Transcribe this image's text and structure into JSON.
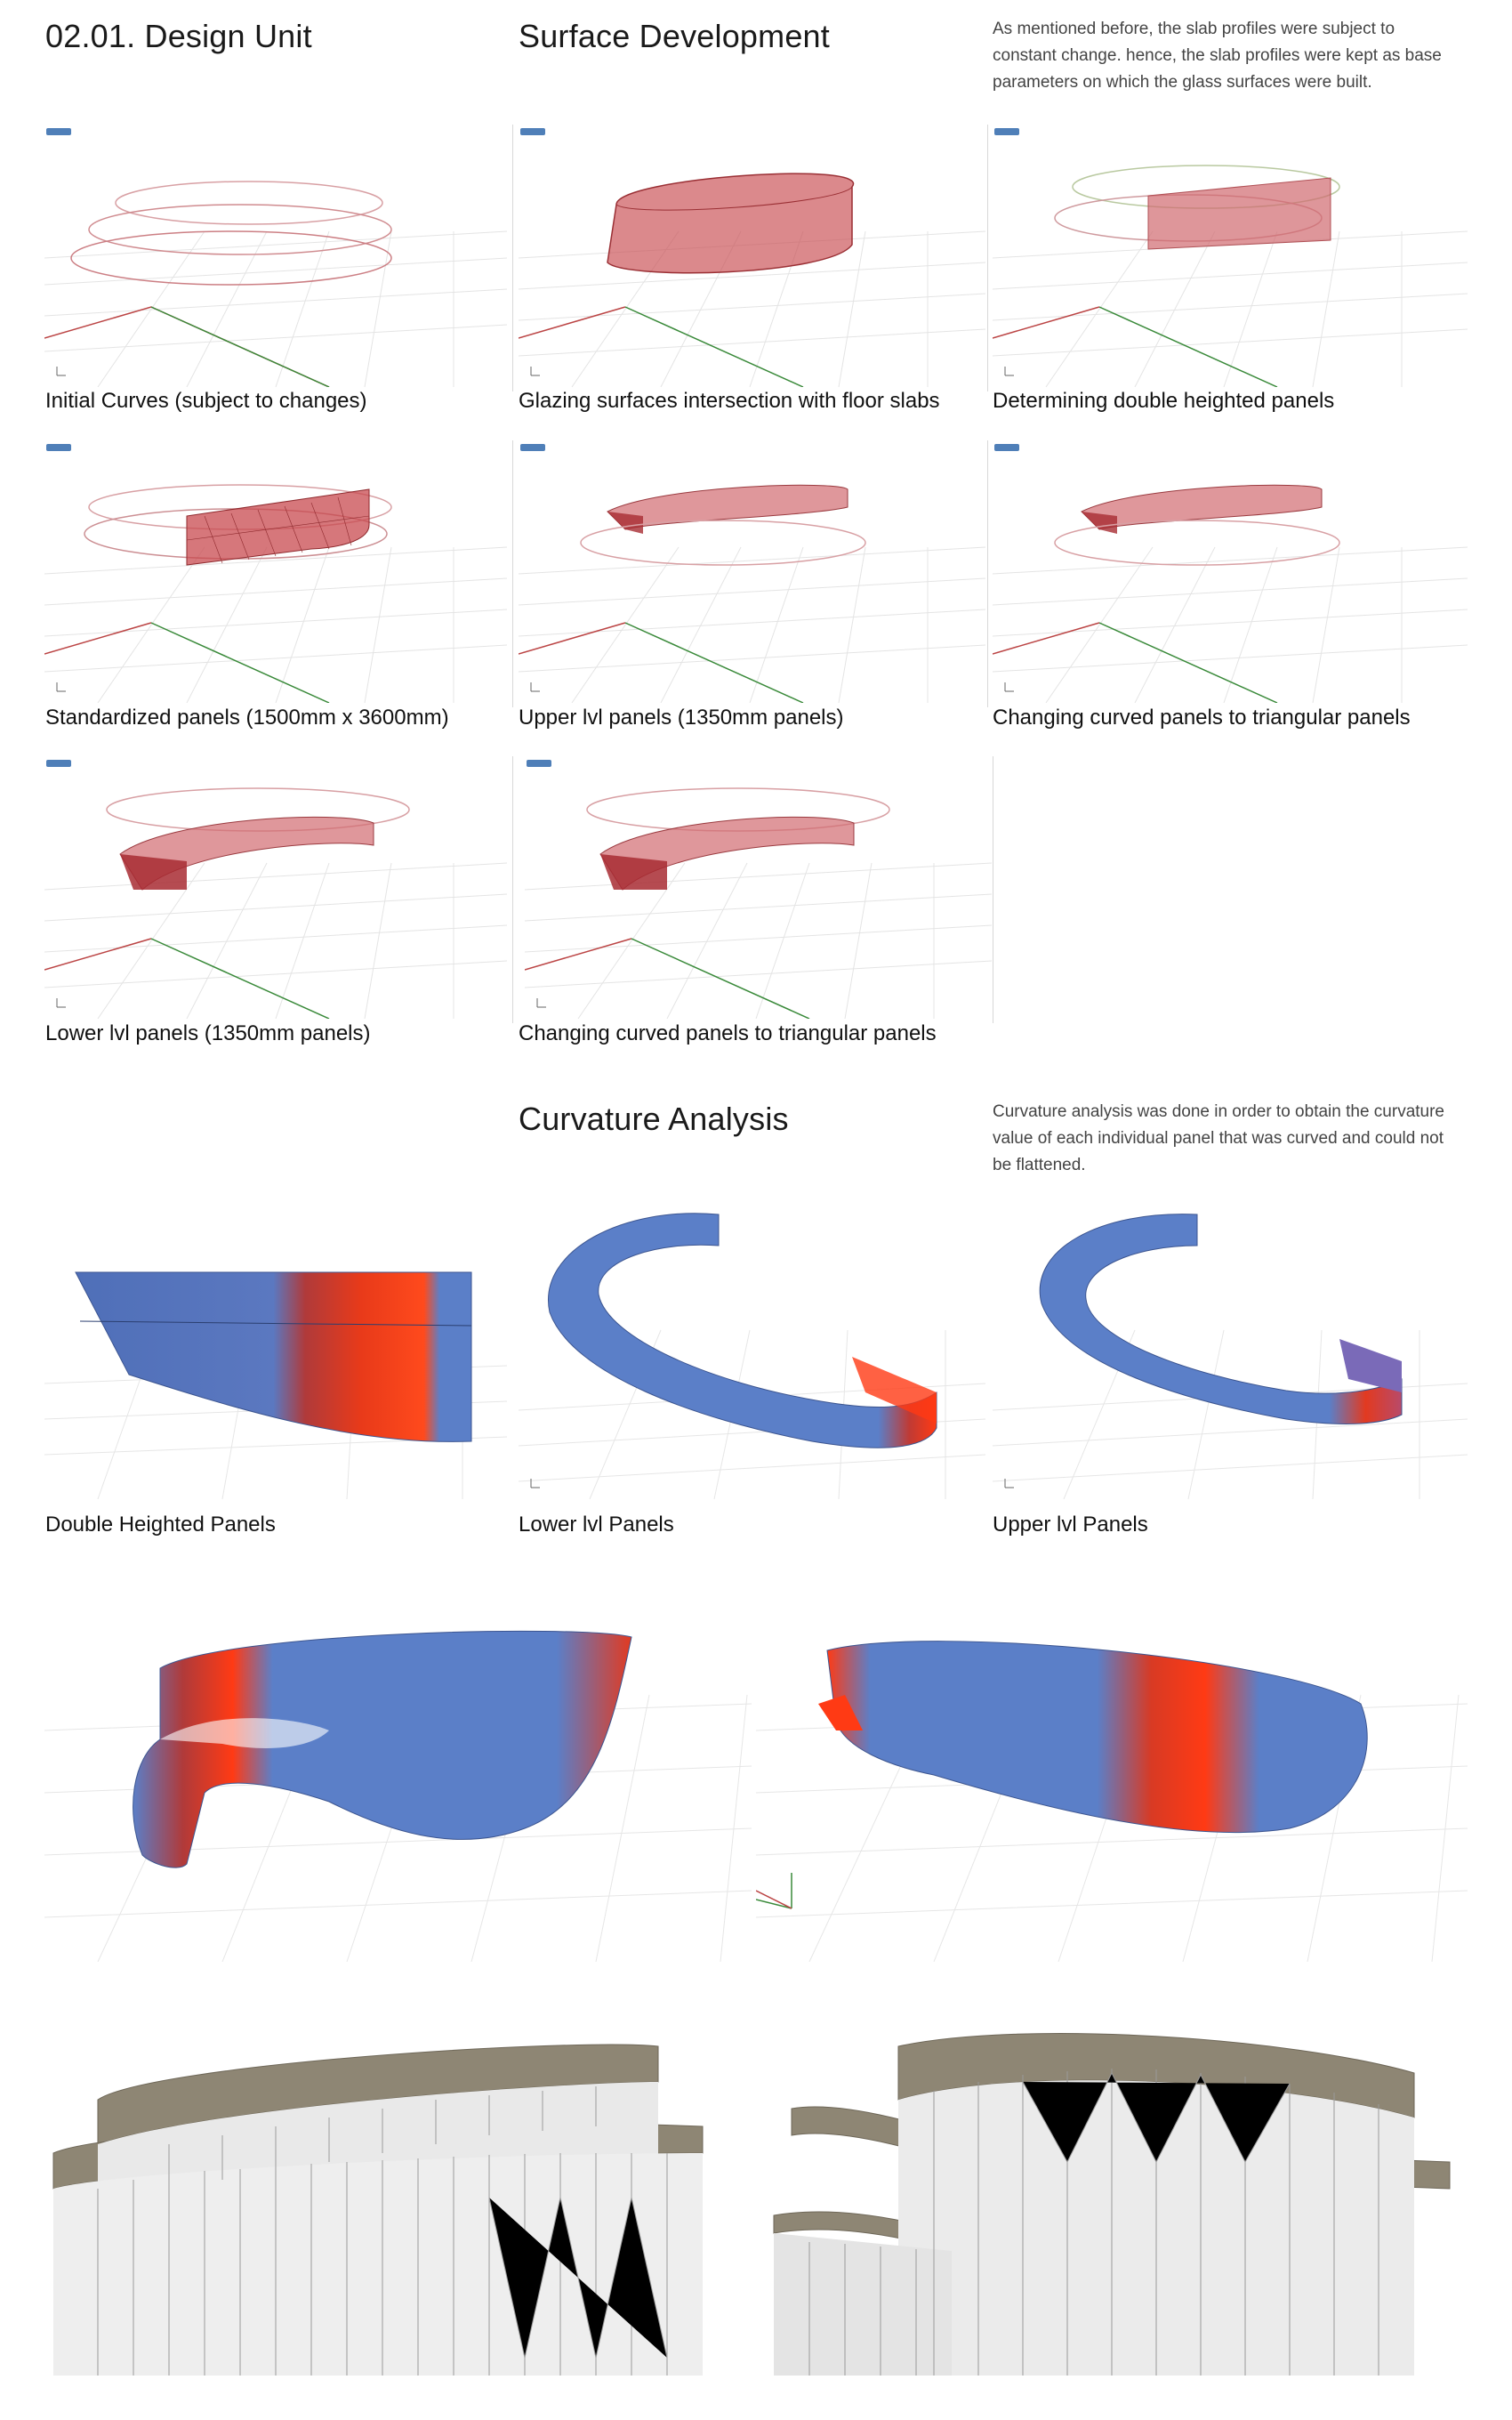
{
  "header": {
    "title": "02.01. Design Unit",
    "section": "Surface Development",
    "note": "As mentioned before, the slab profiles were subject to constant change. hence, the slab profiles were kept as base parameters on which the glass surfaces were built."
  },
  "surface_captions": [
    "Initial Curves (subject to changes)",
    "Glazing surfaces intersection with floor slabs",
    "Determining double heighted panels",
    "Standardized panels (1500mm x 3600mm)",
    "Upper lvl panels (1350mm panels)",
    "Changing curved panels to triangular panels",
    "Lower lvl panels (1350mm panels)",
    "Changing curved panels to triangular panels"
  ],
  "curvature": {
    "section": "Curvature Analysis",
    "note": "Curvature analysis was done in order to obtain the curvature value of each individual panel that was curved and could not be flattened.",
    "captions": [
      "Double Heighted Panels",
      "Lower lvl Panels",
      "Upper lvl Panels"
    ]
  },
  "colors": {
    "background": "#ffffff",
    "curve_red": "#c9545a",
    "panel_red": "#c84a4f",
    "curvature_blue": "#5b7fc8",
    "curvature_red": "#ff3a14",
    "grid": "#e2e2e2",
    "axis_red": "#a33",
    "axis_green": "#3a8a3a",
    "slab_concrete": "#8e8674",
    "glass": "#e9e9e9"
  },
  "icons": [
    "viewport-label-icon",
    "axis-gizmo-icon"
  ]
}
